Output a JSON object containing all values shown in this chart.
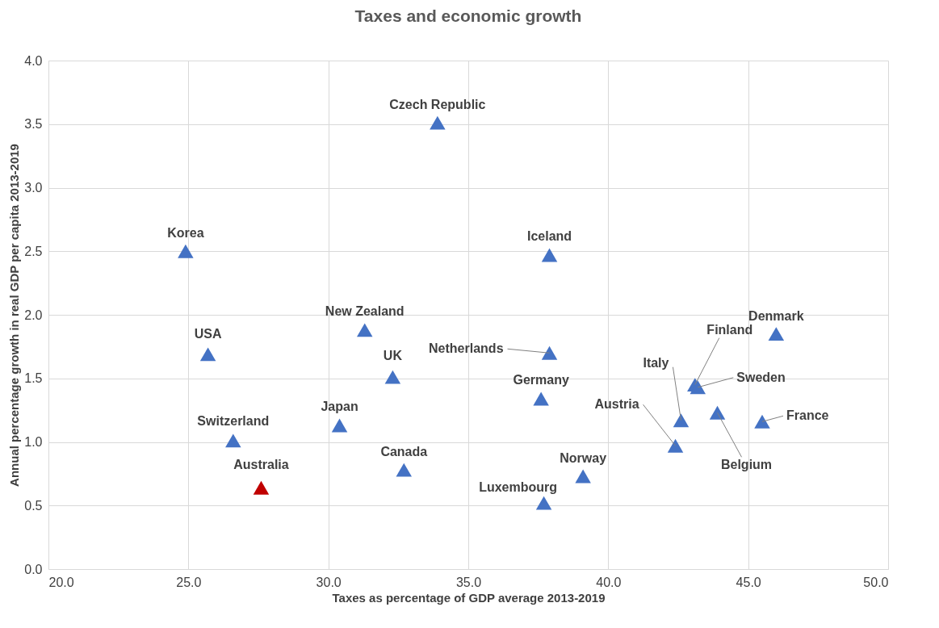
{
  "chart_data": {
    "type": "scatter",
    "title": "Taxes and economic growth",
    "xlabel": "Taxes as percentage of GDP average 2013-2019",
    "ylabel": "Annual percentage growth in real GDP per capita 2013-2019",
    "x": [
      24.9,
      25.7,
      26.6,
      27.6,
      30.4,
      31.3,
      32.3,
      32.7,
      33.9,
      37.9,
      37.9,
      37.6,
      37.7,
      39.1,
      42.4,
      42.6,
      43.1,
      43.2,
      43.9,
      45.5,
      46.0
    ],
    "values": [
      2.5,
      1.69,
      1.01,
      0.64,
      1.13,
      1.88,
      1.51,
      0.78,
      3.51,
      2.47,
      1.7,
      1.34,
      0.52,
      0.73,
      0.97,
      1.17,
      1.45,
      1.43,
      1.23,
      1.16,
      1.85
    ],
    "colors": [
      "#4472c4",
      "#4472c4",
      "#4472c4",
      "#c00000",
      "#4472c4",
      "#4472c4",
      "#4472c4",
      "#4472c4",
      "#4472c4",
      "#4472c4",
      "#4472c4",
      "#4472c4",
      "#4472c4",
      "#4472c4",
      "#4472c4",
      "#4472c4",
      "#4472c4",
      "#4472c4",
      "#4472c4",
      "#4472c4",
      "#4472c4"
    ],
    "marker": "triangle",
    "grid": true,
    "xlim": [
      20,
      50
    ],
    "xticks": [
      {
        "value": 20,
        "label": "20.0"
      },
      {
        "value": 25,
        "label": "25.0"
      },
      {
        "value": 30,
        "label": "30.0"
      },
      {
        "value": 35,
        "label": "35.0"
      },
      {
        "value": 40,
        "label": "40.0"
      },
      {
        "value": 45,
        "label": "45.0"
      },
      {
        "value": 50,
        "label": "50.0"
      }
    ],
    "ylim": [
      0,
      4
    ],
    "yticks": [
      {
        "value": 0,
        "label": "0.0"
      },
      {
        "value": 0.5,
        "label": "0.5"
      },
      {
        "value": 1,
        "label": "1.0"
      },
      {
        "value": 1.5,
        "label": "1.5"
      },
      {
        "value": 2,
        "label": "2.0"
      },
      {
        "value": 2.5,
        "label": "2.5"
      },
      {
        "value": 3,
        "label": "3.0"
      },
      {
        "value": 3.5,
        "label": "3.5"
      },
      {
        "value": 4,
        "label": "4.0"
      }
    ],
    "annotations": [
      {
        "text": "Korea",
        "x": 24.9,
        "y": 2.5
      },
      {
        "text": "USA",
        "x": 25.7,
        "y": 1.69
      },
      {
        "text": "Switzerland",
        "x": 26.6,
        "y": 1.01
      },
      {
        "text": "Australia",
        "x": 27.6,
        "y": 0.64
      },
      {
        "text": "Japan",
        "x": 30.4,
        "y": 1.13
      },
      {
        "text": "New Zealand",
        "x": 31.3,
        "y": 1.88
      },
      {
        "text": "UK",
        "x": 32.3,
        "y": 1.51
      },
      {
        "text": "Canada",
        "x": 32.7,
        "y": 0.78
      },
      {
        "text": "Czech Republic",
        "x": 33.9,
        "y": 3.51
      },
      {
        "text": "Iceland",
        "x": 37.9,
        "y": 2.47
      },
      {
        "text": "Netherlands",
        "x": 37.9,
        "y": 1.7
      },
      {
        "text": "Germany",
        "x": 37.6,
        "y": 1.34
      },
      {
        "text": "Luxembourg",
        "x": 37.7,
        "y": 0.52
      },
      {
        "text": "Norway",
        "x": 39.1,
        "y": 0.73
      },
      {
        "text": "Austria",
        "x": 42.4,
        "y": 0.97
      },
      {
        "text": "Italy",
        "x": 42.6,
        "y": 1.17
      },
      {
        "text": "Finland",
        "x": 43.1,
        "y": 1.45
      },
      {
        "text": "Sweden",
        "x": 43.2,
        "y": 1.43
      },
      {
        "text": "Belgium",
        "x": 43.9,
        "y": 1.23
      },
      {
        "text": "France",
        "x": 45.5,
        "y": 1.16
      },
      {
        "text": "Denmark",
        "x": 46.0,
        "y": 1.85
      }
    ]
  }
}
